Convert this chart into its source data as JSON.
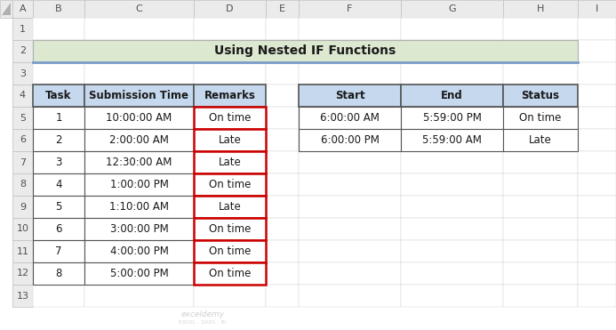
{
  "title": "Using Nested IF Functions",
  "title_bg": "#dce8d0",
  "header_line_color": "#7a9cc8",
  "header_bg": "#c5d8ee",
  "cell_bg": "#ffffff",
  "remarks_border_color": "#cc0000",
  "main_table": {
    "headers": [
      "Task",
      "Submission Time",
      "Remarks"
    ],
    "rows": [
      [
        "1",
        "10:00:00 AM",
        "On time"
      ],
      [
        "2",
        "2:00:00 AM",
        "Late"
      ],
      [
        "3",
        "12:30:00 AM",
        "Late"
      ],
      [
        "4",
        "1:00:00 PM",
        "On time"
      ],
      [
        "5",
        "1:10:00 AM",
        "Late"
      ],
      [
        "6",
        "3:00:00 PM",
        "On time"
      ],
      [
        "7",
        "4:00:00 PM",
        "On time"
      ],
      [
        "8",
        "5:00:00 PM",
        "On time"
      ]
    ]
  },
  "side_table": {
    "headers": [
      "Start",
      "End",
      "Status"
    ],
    "rows": [
      [
        "6:00:00 AM",
        "5:59:00 PM",
        "On time"
      ],
      [
        "6:00:00 PM",
        "5:59:00 AM",
        "Late"
      ]
    ]
  },
  "col_labels": [
    "A",
    "B",
    "C",
    "D",
    "E",
    "F",
    "G",
    "H",
    "I"
  ],
  "row_labels": [
    "1",
    "2",
    "3",
    "4",
    "5",
    "6",
    "7",
    "8",
    "9",
    "10",
    "11",
    "12",
    "13"
  ],
  "spreadsheet_bg": "#ffffff",
  "row_header_bg": "#ebebeb",
  "col_header_bg": "#ebebeb",
  "col_header_border": "#c0c0c0",
  "cell_border": "#d0d0d0",
  "table_border": "#555555",
  "fig_width": 6.93,
  "fig_height": 3.71,
  "dpi": 100
}
